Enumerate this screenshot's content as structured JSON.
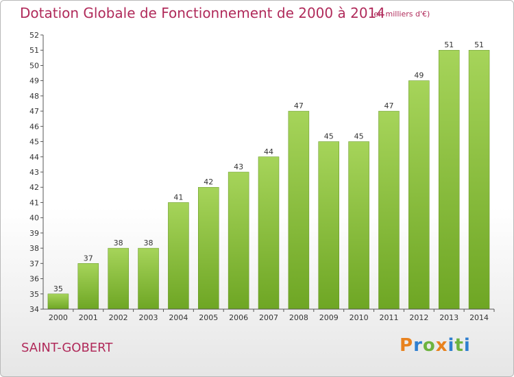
{
  "header": {
    "title": "Dotation Globale de Fonctionnement de 2000 à 2014",
    "unit": "(en milliers d'€)"
  },
  "footer": {
    "commune": "SAINT-GOBERT",
    "logo": "Proxiti"
  },
  "colors": {
    "title": "#b02a5a",
    "bar_light": "#a6d45a",
    "bar_dark": "#6ea624",
    "logo_letters": [
      "#e8821e",
      "#2f7fd0",
      "#6db33f",
      "#e8821e",
      "#2f7fd0",
      "#6db33f",
      "#2f7fd0"
    ]
  },
  "chart_data": {
    "type": "bar",
    "title": "Dotation Globale de Fonctionnement de 2000 à 2014",
    "subtitle": "(en milliers d'€)",
    "categories": [
      "2000",
      "2001",
      "2002",
      "2003",
      "2004",
      "2005",
      "2006",
      "2007",
      "2008",
      "2009",
      "2010",
      "2011",
      "2012",
      "2013",
      "2014"
    ],
    "values": [
      35,
      37,
      38,
      38,
      41,
      42,
      43,
      44,
      47,
      45,
      45,
      47,
      49,
      51,
      51
    ],
    "ylim": [
      34,
      52
    ],
    "yticks": [
      34,
      35,
      36,
      37,
      38,
      39,
      40,
      41,
      42,
      43,
      44,
      45,
      46,
      47,
      48,
      49,
      50,
      51,
      52
    ],
    "grid": false,
    "data_labels": true
  }
}
